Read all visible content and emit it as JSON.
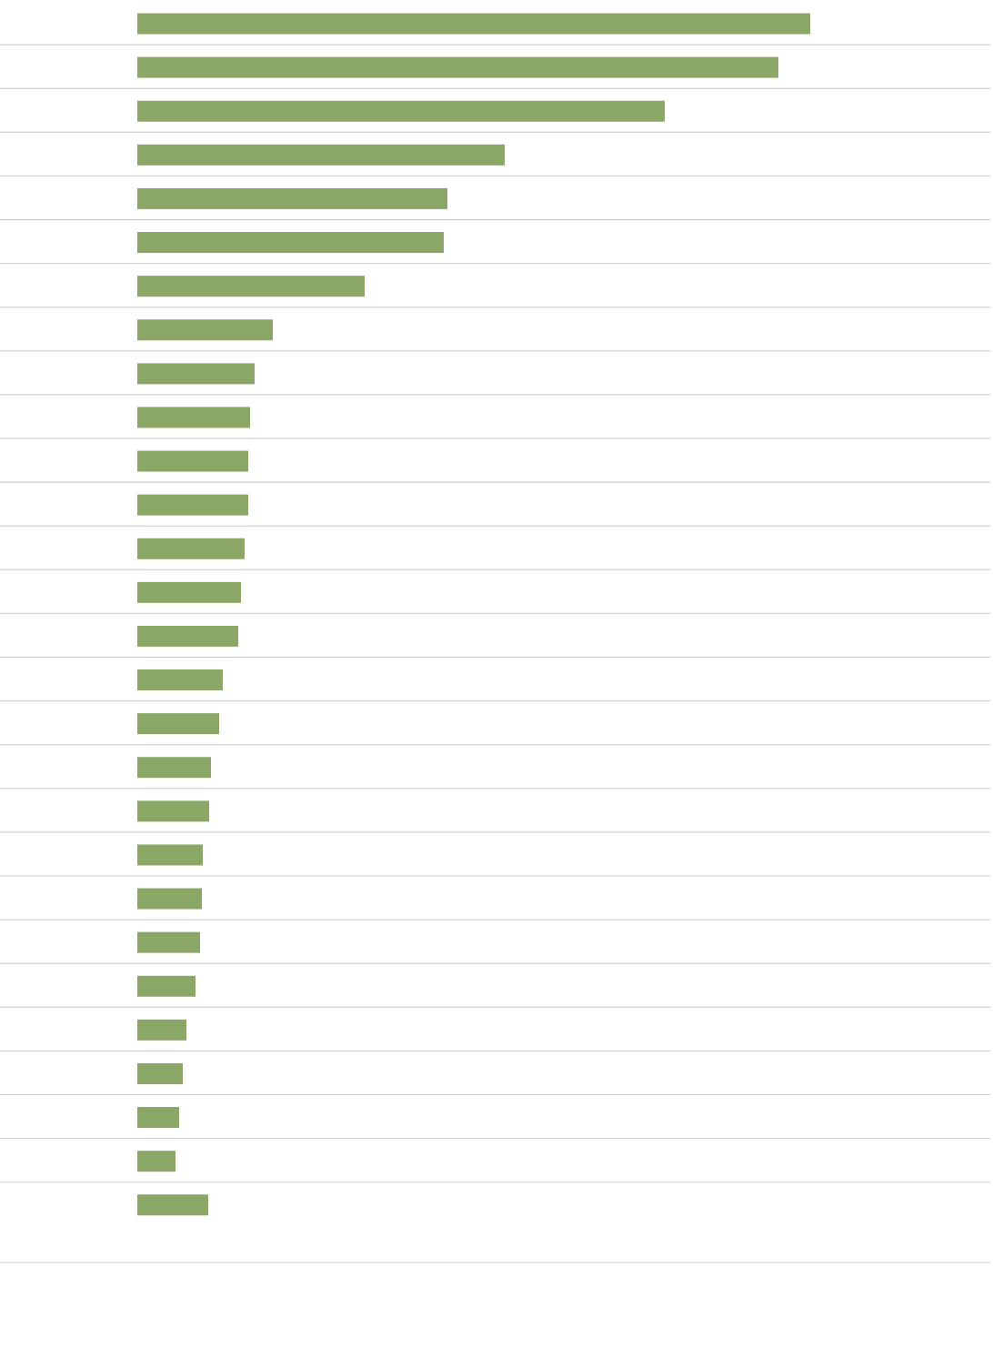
{
  "chart_data": {
    "type": "bar",
    "orientation": "horizontal",
    "color": "#8ba766",
    "categories": [
      null,
      null,
      null,
      null,
      null,
      null,
      null,
      null,
      null,
      null,
      null,
      null,
      null,
      null,
      null,
      null,
      null,
      null,
      null,
      null,
      null,
      null,
      null,
      null,
      null,
      null,
      null,
      null
    ],
    "values": [
      740,
      705,
      580,
      404,
      341,
      337,
      250,
      149,
      129,
      124,
      122,
      122,
      118,
      114,
      111,
      94,
      90,
      81,
      79,
      72,
      71,
      69,
      64,
      54,
      50,
      46,
      42,
      78
    ],
    "xlim": [
      0,
      938
    ]
  }
}
